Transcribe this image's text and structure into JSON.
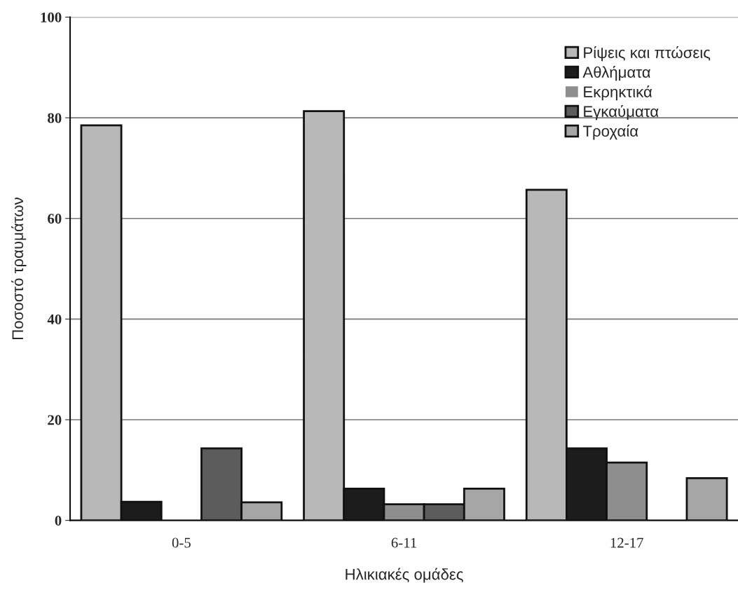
{
  "chart_data": {
    "type": "bar",
    "xlabel": "Ηλικιακές ομάδες",
    "ylabel": "Ποσοστό τραυμάτων",
    "categories": [
      "0-5",
      "6-11",
      "12-17"
    ],
    "series": [
      {
        "name": "Ρίψεις και πτώσεις",
        "color": "#b8b8b8",
        "values": [
          78.5,
          81.3,
          65.7
        ]
      },
      {
        "name": "Αθλήματα",
        "color": "#1c1c1c",
        "values": [
          3.7,
          6.3,
          14.3
        ]
      },
      {
        "name": "Εκρηκτικά",
        "color": "#8e8e8e",
        "values": [
          0,
          3.2,
          11.5
        ]
      },
      {
        "name": "Εγκαύματα",
        "color": "#5c5c5c",
        "values": [
          14.3,
          3.2,
          0
        ]
      },
      {
        "name": "Τροχαία",
        "color": "#a6a6a6",
        "values": [
          3.6,
          6.3,
          8.4
        ]
      }
    ],
    "ylim": [
      0,
      100
    ],
    "yticks": [
      0,
      20,
      40,
      60,
      80,
      100
    ],
    "grid": "y",
    "legend": "top right"
  }
}
